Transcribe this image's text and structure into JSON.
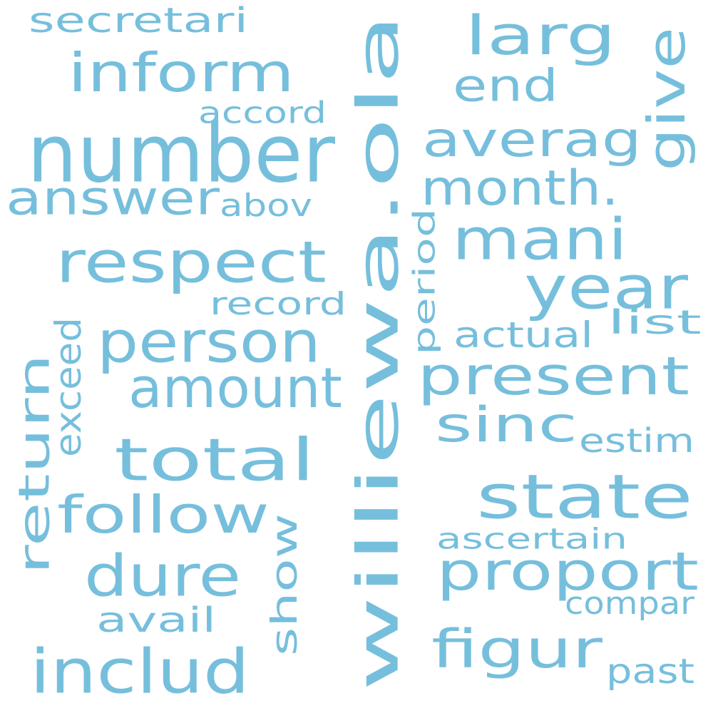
{
  "cloud": {
    "color": "#76bfdc",
    "words": [
      {
        "text": "williewa.ola",
        "vertical": true
      },
      {
        "text": "number"
      },
      {
        "text": "secretari"
      },
      {
        "text": "inform"
      },
      {
        "text": "larg"
      },
      {
        "text": "end"
      },
      {
        "text": "give",
        "vertical": true
      },
      {
        "text": "accord"
      },
      {
        "text": "averag"
      },
      {
        "text": "answer"
      },
      {
        "text": "abov"
      },
      {
        "text": "month."
      },
      {
        "text": "mani"
      },
      {
        "text": "respect"
      },
      {
        "text": "period",
        "vertical": true
      },
      {
        "text": "year"
      },
      {
        "text": "record"
      },
      {
        "text": "list"
      },
      {
        "text": "person"
      },
      {
        "text": "actual"
      },
      {
        "text": "exceed",
        "vertical": true
      },
      {
        "text": "return",
        "vertical": true
      },
      {
        "text": "amount"
      },
      {
        "text": "present"
      },
      {
        "text": "sinc"
      },
      {
        "text": "estim"
      },
      {
        "text": "total"
      },
      {
        "text": "state"
      },
      {
        "text": "follow"
      },
      {
        "text": "show",
        "vertical": true
      },
      {
        "text": "ascertain"
      },
      {
        "text": "dure"
      },
      {
        "text": "proport"
      },
      {
        "text": "compar"
      },
      {
        "text": "avail"
      },
      {
        "text": "figur"
      },
      {
        "text": "includ"
      },
      {
        "text": "past"
      }
    ]
  }
}
